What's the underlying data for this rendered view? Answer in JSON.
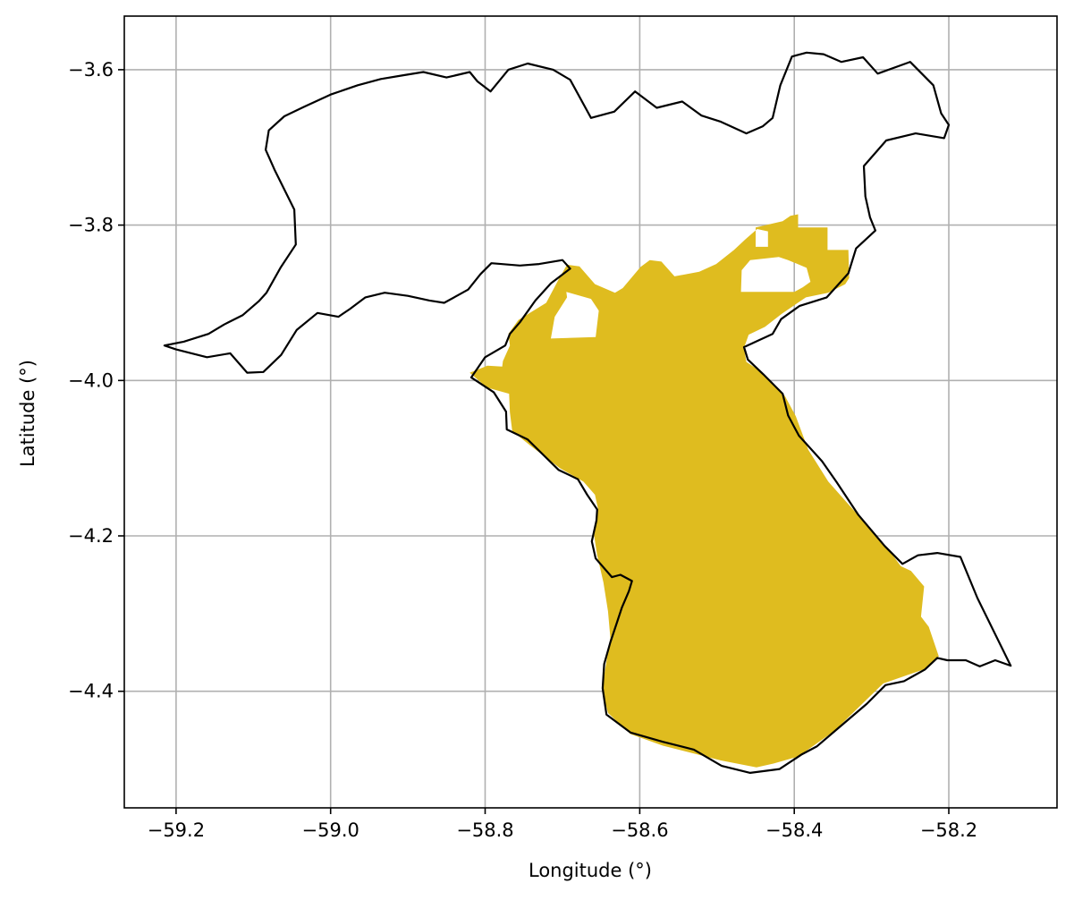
{
  "chart_data": {
    "type": "map",
    "xlabel": "Longitude (°)",
    "ylabel": "Latitude (°)",
    "xlim": [
      -59.267,
      -58.06
    ],
    "ylim": [
      -4.55,
      -3.531
    ],
    "xticks": [
      -59.2,
      -59.0,
      -58.8,
      -58.6,
      -58.4,
      -58.2
    ],
    "yticks": [
      -3.6,
      -3.8,
      -4.0,
      -4.2,
      -4.4
    ],
    "grid": true,
    "colors": {
      "highlight": "#dfbc1f",
      "outline": "#000000",
      "grid": "#b0b0b0"
    },
    "regions": [
      {
        "role": "highlighted-area",
        "points": [
          [
            -58.82,
            -3.99
          ],
          [
            -58.797,
            -3.981
          ],
          [
            -58.778,
            -3.982
          ],
          [
            -58.777,
            -3.975
          ],
          [
            -58.768,
            -3.955
          ],
          [
            -58.77,
            -3.94
          ],
          [
            -58.757,
            -3.922
          ],
          [
            -58.721,
            -3.9
          ],
          [
            -58.704,
            -3.868
          ],
          [
            -58.694,
            -3.851
          ],
          [
            -58.678,
            -3.853
          ],
          [
            -58.658,
            -3.876
          ],
          [
            -58.632,
            -3.887
          ],
          [
            -58.622,
            -3.881
          ],
          [
            -58.599,
            -3.854
          ],
          [
            -58.587,
            -3.845
          ],
          [
            -58.572,
            -3.847
          ],
          [
            -58.555,
            -3.866
          ],
          [
            -58.523,
            -3.86
          ],
          [
            -58.501,
            -3.85
          ],
          [
            -58.478,
            -3.832
          ],
          [
            -58.463,
            -3.818
          ],
          [
            -58.448,
            -3.805
          ],
          [
            -58.434,
            -3.808
          ],
          [
            -58.434,
            -3.828
          ],
          [
            -58.45,
            -3.828
          ],
          [
            -58.45,
            -3.803
          ],
          [
            -58.415,
            -3.795
          ],
          [
            -58.405,
            -3.788
          ],
          [
            -58.395,
            -3.786
          ],
          [
            -58.395,
            -3.803
          ],
          [
            -58.357,
            -3.803
          ],
          [
            -58.357,
            -3.832
          ],
          [
            -58.33,
            -3.832
          ],
          [
            -58.329,
            -3.868
          ],
          [
            -58.334,
            -3.876
          ],
          [
            -58.356,
            -3.887
          ],
          [
            -58.385,
            -3.893
          ],
          [
            -58.416,
            -3.914
          ],
          [
            -58.438,
            -3.931
          ],
          [
            -58.459,
            -3.941
          ],
          [
            -58.465,
            -3.958
          ],
          [
            -58.462,
            -3.976
          ],
          [
            -58.441,
            -3.99
          ],
          [
            -58.412,
            -4.02
          ],
          [
            -58.398,
            -4.046
          ],
          [
            -58.382,
            -4.089
          ],
          [
            -58.356,
            -4.13
          ],
          [
            -58.316,
            -4.175
          ],
          [
            -58.277,
            -4.219
          ],
          [
            -58.262,
            -4.239
          ],
          [
            -58.249,
            -4.245
          ],
          [
            -58.232,
            -4.265
          ],
          [
            -58.236,
            -4.304
          ],
          [
            -58.226,
            -4.317
          ],
          [
            -58.213,
            -4.355
          ],
          [
            -58.23,
            -4.371
          ],
          [
            -58.285,
            -4.39
          ],
          [
            -58.313,
            -4.417
          ],
          [
            -58.348,
            -4.451
          ],
          [
            -58.395,
            -4.484
          ],
          [
            -58.427,
            -4.493
          ],
          [
            -58.449,
            -4.498
          ],
          [
            -58.495,
            -4.489
          ],
          [
            -58.53,
            -4.48
          ],
          [
            -58.57,
            -4.47
          ],
          [
            -58.612,
            -4.455
          ],
          [
            -58.641,
            -4.428
          ],
          [
            -58.649,
            -4.397
          ],
          [
            -58.644,
            -4.367
          ],
          [
            -58.638,
            -4.331
          ],
          [
            -58.641,
            -4.297
          ],
          [
            -58.647,
            -4.26
          ],
          [
            -58.655,
            -4.225
          ],
          [
            -58.659,
            -4.2
          ],
          [
            -58.654,
            -4.165
          ],
          [
            -58.658,
            -4.147
          ],
          [
            -58.673,
            -4.13
          ],
          [
            -58.703,
            -4.113
          ],
          [
            -58.74,
            -4.085
          ],
          [
            -58.765,
            -4.065
          ],
          [
            -58.768,
            -4.041
          ],
          [
            -58.769,
            -4.017
          ],
          [
            -58.798,
            -4.009
          ],
          [
            -58.82,
            -3.99
          ]
        ]
      },
      {
        "role": "hole",
        "points": [
          [
            -58.695,
            -3.886
          ],
          [
            -58.663,
            -3.895
          ],
          [
            -58.653,
            -3.91
          ],
          [
            -58.657,
            -3.944
          ],
          [
            -58.715,
            -3.946
          ],
          [
            -58.71,
            -3.918
          ],
          [
            -58.694,
            -3.893
          ],
          [
            -58.695,
            -3.886
          ]
        ]
      },
      {
        "role": "hole",
        "points": [
          [
            -58.469,
            -3.886
          ],
          [
            -58.4,
            -3.886
          ],
          [
            -58.389,
            -3.88
          ],
          [
            -58.379,
            -3.873
          ],
          [
            -58.384,
            -3.855
          ],
          [
            -58.408,
            -3.845
          ],
          [
            -58.42,
            -3.841
          ],
          [
            -58.457,
            -3.845
          ],
          [
            -58.468,
            -3.858
          ],
          [
            -58.469,
            -3.886
          ]
        ]
      },
      {
        "role": "boundary-outline",
        "points": [
          [
            -59.215,
            -3.955
          ],
          [
            -59.19,
            -3.95
          ],
          [
            -59.158,
            -3.94
          ],
          [
            -59.138,
            -3.928
          ],
          [
            -59.114,
            -3.916
          ],
          [
            -59.093,
            -3.898
          ],
          [
            -59.083,
            -3.887
          ],
          [
            -59.065,
            -3.855
          ],
          [
            -59.045,
            -3.825
          ],
          [
            -59.047,
            -3.78
          ],
          [
            -59.072,
            -3.73
          ],
          [
            -59.084,
            -3.703
          ],
          [
            -59.08,
            -3.678
          ],
          [
            -59.06,
            -3.66
          ],
          [
            -59.035,
            -3.648
          ],
          [
            -59.0,
            -3.632
          ],
          [
            -58.965,
            -3.62
          ],
          [
            -58.935,
            -3.612
          ],
          [
            -58.905,
            -3.607
          ],
          [
            -58.88,
            -3.603
          ],
          [
            -58.85,
            -3.61
          ],
          [
            -58.82,
            -3.603
          ],
          [
            -58.81,
            -3.615
          ],
          [
            -58.793,
            -3.628
          ],
          [
            -58.77,
            -3.6
          ],
          [
            -58.745,
            -3.592
          ],
          [
            -58.712,
            -3.6
          ],
          [
            -58.69,
            -3.613
          ],
          [
            -58.663,
            -3.662
          ],
          [
            -58.633,
            -3.654
          ],
          [
            -58.606,
            -3.628
          ],
          [
            -58.578,
            -3.649
          ],
          [
            -58.545,
            -3.641
          ],
          [
            -58.52,
            -3.659
          ],
          [
            -58.495,
            -3.667
          ],
          [
            -58.462,
            -3.682
          ],
          [
            -58.441,
            -3.673
          ],
          [
            -58.428,
            -3.662
          ],
          [
            -58.418,
            -3.62
          ],
          [
            -58.403,
            -3.583
          ],
          [
            -58.384,
            -3.578
          ],
          [
            -58.362,
            -3.58
          ],
          [
            -58.339,
            -3.59
          ],
          [
            -58.311,
            -3.584
          ],
          [
            -58.292,
            -3.605
          ],
          [
            -58.25,
            -3.59
          ],
          [
            -58.22,
            -3.62
          ],
          [
            -58.21,
            -3.656
          ],
          [
            -58.2,
            -3.671
          ],
          [
            -58.206,
            -3.688
          ],
          [
            -58.243,
            -3.682
          ],
          [
            -58.281,
            -3.691
          ],
          [
            -58.31,
            -3.724
          ],
          [
            -58.308,
            -3.763
          ],
          [
            -58.302,
            -3.79
          ],
          [
            -58.295,
            -3.807
          ],
          [
            -58.32,
            -3.83
          ],
          [
            -58.33,
            -3.862
          ],
          [
            -58.358,
            -3.893
          ],
          [
            -58.393,
            -3.904
          ],
          [
            -58.417,
            -3.921
          ],
          [
            -58.428,
            -3.94
          ],
          [
            -58.465,
            -3.957
          ],
          [
            -58.46,
            -3.973
          ],
          [
            -58.44,
            -3.992
          ],
          [
            -58.415,
            -4.017
          ],
          [
            -58.408,
            -4.045
          ],
          [
            -58.394,
            -4.071
          ],
          [
            -58.364,
            -4.104
          ],
          [
            -58.345,
            -4.131
          ],
          [
            -58.317,
            -4.173
          ],
          [
            -58.283,
            -4.213
          ],
          [
            -58.26,
            -4.236
          ],
          [
            -58.24,
            -4.225
          ],
          [
            -58.215,
            -4.222
          ],
          [
            -58.185,
            -4.227
          ],
          [
            -58.163,
            -4.28
          ],
          [
            -58.12,
            -4.367
          ],
          [
            -58.14,
            -4.36
          ],
          [
            -58.16,
            -4.368
          ],
          [
            -58.178,
            -4.36
          ],
          [
            -58.202,
            -4.36
          ],
          [
            -58.215,
            -4.357
          ],
          [
            -58.231,
            -4.372
          ],
          [
            -58.258,
            -4.387
          ],
          [
            -58.282,
            -4.392
          ],
          [
            -58.306,
            -4.416
          ],
          [
            -58.338,
            -4.443
          ],
          [
            -58.371,
            -4.471
          ],
          [
            -58.39,
            -4.481
          ],
          [
            -58.419,
            -4.5
          ],
          [
            -58.457,
            -4.505
          ],
          [
            -58.494,
            -4.496
          ],
          [
            -58.53,
            -4.475
          ],
          [
            -58.57,
            -4.465
          ],
          [
            -58.612,
            -4.453
          ],
          [
            -58.643,
            -4.43
          ],
          [
            -58.648,
            -4.396
          ],
          [
            -58.646,
            -4.365
          ],
          [
            -58.638,
            -4.337
          ],
          [
            -58.629,
            -4.31
          ],
          [
            -58.623,
            -4.292
          ],
          [
            -58.614,
            -4.271
          ],
          [
            -58.61,
            -4.258
          ],
          [
            -58.625,
            -4.25
          ],
          [
            -58.636,
            -4.253
          ],
          [
            -58.657,
            -4.229
          ],
          [
            -58.662,
            -4.207
          ],
          [
            -58.656,
            -4.18
          ],
          [
            -58.655,
            -4.166
          ],
          [
            -58.668,
            -4.147
          ],
          [
            -58.68,
            -4.127
          ],
          [
            -58.705,
            -4.115
          ],
          [
            -58.745,
            -4.076
          ],
          [
            -58.772,
            -4.063
          ],
          [
            -58.773,
            -4.04
          ],
          [
            -58.789,
            -4.015
          ],
          [
            -58.818,
            -3.996
          ],
          [
            -58.8,
            -3.97
          ],
          [
            -58.774,
            -3.955
          ],
          [
            -58.768,
            -3.94
          ],
          [
            -58.755,
            -3.925
          ],
          [
            -58.735,
            -3.897
          ],
          [
            -58.715,
            -3.875
          ],
          [
            -58.69,
            -3.856
          ],
          [
            -58.7,
            -3.845
          ],
          [
            -58.73,
            -3.85
          ],
          [
            -58.755,
            -3.852
          ],
          [
            -58.792,
            -3.849
          ],
          [
            -58.806,
            -3.863
          ],
          [
            -58.822,
            -3.883
          ],
          [
            -58.853,
            -3.9
          ],
          [
            -58.872,
            -3.897
          ],
          [
            -58.9,
            -3.891
          ],
          [
            -58.93,
            -3.887
          ],
          [
            -58.955,
            -3.893
          ],
          [
            -58.975,
            -3.908
          ],
          [
            -58.99,
            -3.918
          ],
          [
            -59.017,
            -3.913
          ],
          [
            -59.044,
            -3.935
          ],
          [
            -59.064,
            -3.967
          ],
          [
            -59.087,
            -3.989
          ],
          [
            -59.108,
            -3.99
          ],
          [
            -59.13,
            -3.965
          ],
          [
            -59.16,
            -3.97
          ],
          [
            -59.18,
            -3.965
          ],
          [
            -59.2,
            -3.96
          ],
          [
            -59.215,
            -3.955
          ]
        ]
      }
    ]
  }
}
